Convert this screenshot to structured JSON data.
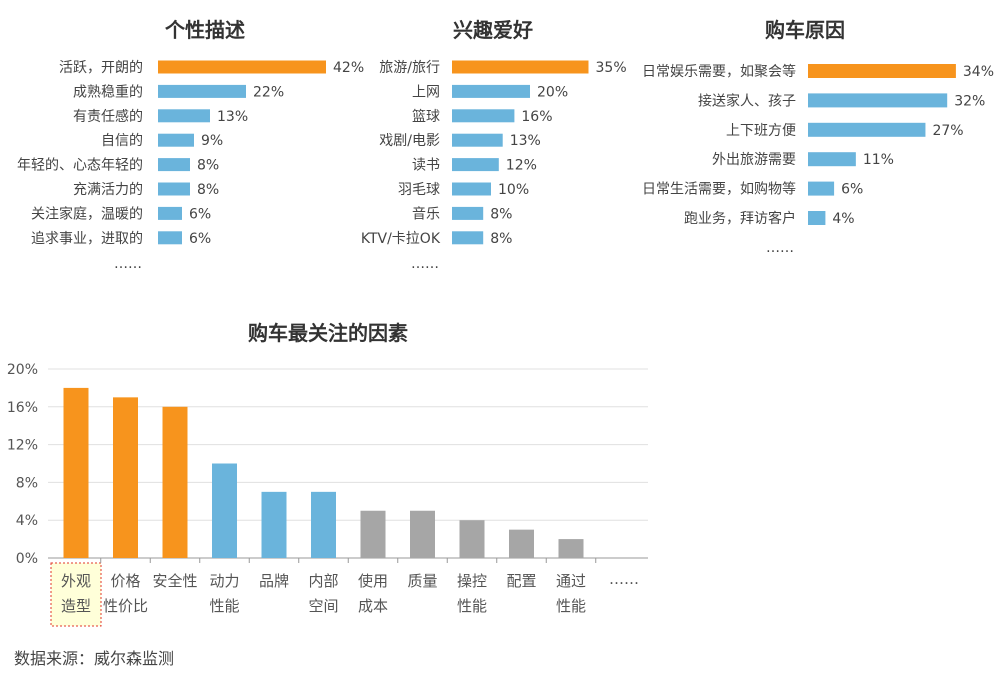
{
  "colors": {
    "highlight": "#f7941d",
    "blue": "#6ab4dc",
    "gray": "#a6a6a6",
    "axis": "#999999",
    "grid": "#e0e0e0"
  },
  "source": "数据来源：威尔森监测",
  "chart_data": [
    {
      "type": "bar",
      "orientation": "horizontal",
      "title": "个性描述",
      "categories": [
        "活跃，开朗的",
        "成熟稳重的",
        "有责任感的",
        "自信的",
        "年轻的、心态年轻的",
        "充满活力的",
        "关注家庭，温暖的",
        "追求事业，进取的"
      ],
      "values": [
        42,
        22,
        13,
        9,
        8,
        8,
        6,
        6
      ],
      "value_labels": [
        "42%",
        "22%",
        "13%",
        "9%",
        "8%",
        "8%",
        "6%",
        "6%"
      ],
      "highlight_index": 0,
      "more": "……"
    },
    {
      "type": "bar",
      "orientation": "horizontal",
      "title": "兴趣爱好",
      "categories": [
        "旅游/旅行",
        "上网",
        "篮球",
        "戏剧/电影",
        "读书",
        "羽毛球",
        "音乐",
        "KTV/卡拉OK"
      ],
      "values": [
        35,
        20,
        16,
        13,
        12,
        10,
        8,
        8
      ],
      "value_labels": [
        "35%",
        "20%",
        "16%",
        "13%",
        "12%",
        "10%",
        "8%",
        "8%"
      ],
      "highlight_index": 0,
      "more": "……"
    },
    {
      "type": "bar",
      "orientation": "horizontal",
      "title": "购车原因",
      "categories": [
        "日常娱乐需要，如聚会等",
        "接送家人、孩子",
        "上下班方便",
        "外出旅游需要",
        "日常生活需要，如购物等",
        "跑业务，拜访客户"
      ],
      "values": [
        34,
        32,
        27,
        11,
        6,
        4
      ],
      "value_labels": [
        "34%",
        "32%",
        "27%",
        "11%",
        "6%",
        "4%"
      ],
      "highlight_index": 0,
      "more": "……"
    },
    {
      "type": "bar",
      "orientation": "vertical",
      "title": "购车最关注的因素",
      "categories": [
        [
          "外观",
          "造型"
        ],
        [
          "价格",
          "性价比"
        ],
        [
          "安全性"
        ],
        [
          "动力",
          "性能"
        ],
        [
          "品牌"
        ],
        [
          "内部",
          "空间"
        ],
        [
          "使用",
          "成本"
        ],
        [
          "质量"
        ],
        [
          "操控",
          "性能"
        ],
        [
          "配置"
        ],
        [
          "通过",
          "性能"
        ]
      ],
      "values": [
        18,
        17,
        16,
        10,
        7,
        7,
        5,
        5,
        4,
        3,
        2
      ],
      "groups": [
        "orange",
        "orange",
        "orange",
        "blue",
        "blue",
        "blue",
        "gray",
        "gray",
        "gray",
        "gray",
        "gray"
      ],
      "yticks": [
        "0%",
        "4%",
        "8%",
        "12%",
        "16%",
        "20%"
      ],
      "ylim": [
        0,
        20
      ],
      "highlight_category_index": 0,
      "more": "……"
    }
  ]
}
